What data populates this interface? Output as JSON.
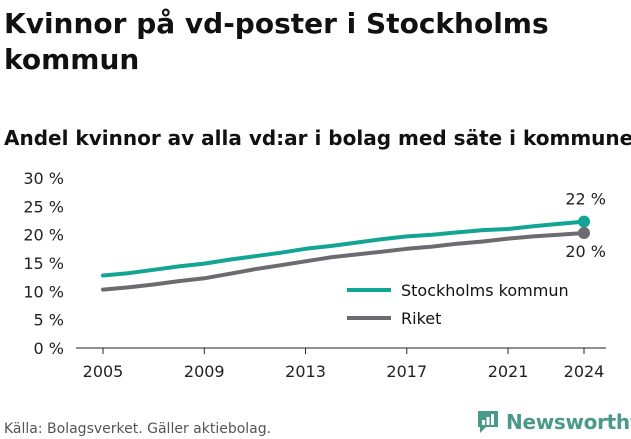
{
  "header": {
    "title": "Kvinnor på vd-poster i Stockholms kommun",
    "subtitle": "Andel kvinnor av alla vd:ar i bolag med säte i kommunen"
  },
  "footer": {
    "source": "Källa: Bolagsverket. Gäller aktiebolag.",
    "brand": "Newsworthy",
    "brand_icon": "bar-chart-logo-icon"
  },
  "colors": {
    "stockholm": "#12a594",
    "riket": "#6b6b70",
    "brand": "#4a9a8c"
  },
  "chart_data": {
    "type": "line",
    "title": "Andel kvinnor av alla vd:ar i bolag med säte i kommunen",
    "x": [
      2005,
      2006,
      2007,
      2008,
      2009,
      2010,
      2011,
      2012,
      2013,
      2014,
      2015,
      2016,
      2017,
      2018,
      2019,
      2020,
      2021,
      2022,
      2023,
      2024
    ],
    "x_ticks": [
      "2005",
      "2009",
      "2013",
      "2017",
      "2021",
      "2024"
    ],
    "y_ticks": [
      "0 %",
      "5 %",
      "10 %",
      "15 %",
      "20 %",
      "25 %",
      "30 %"
    ],
    "ylim": [
      0,
      30
    ],
    "grid": false,
    "legend_position": "bottom-right",
    "series": [
      {
        "name": "Stockholms kommun",
        "color": "#12a594",
        "values": [
          12.8,
          13.2,
          13.8,
          14.4,
          14.9,
          15.6,
          16.2,
          16.8,
          17.5,
          18.0,
          18.6,
          19.2,
          19.7,
          20.0,
          20.4,
          20.8,
          21.0,
          21.5,
          21.9,
          22.3
        ],
        "end_label": "22 %"
      },
      {
        "name": "Riket",
        "color": "#6b6b70",
        "values": [
          10.3,
          10.7,
          11.2,
          11.8,
          12.3,
          13.1,
          13.9,
          14.6,
          15.3,
          16.0,
          16.5,
          17.0,
          17.5,
          17.9,
          18.4,
          18.8,
          19.3,
          19.7,
          20.0,
          20.3
        ],
        "end_label": "20 %"
      }
    ]
  }
}
